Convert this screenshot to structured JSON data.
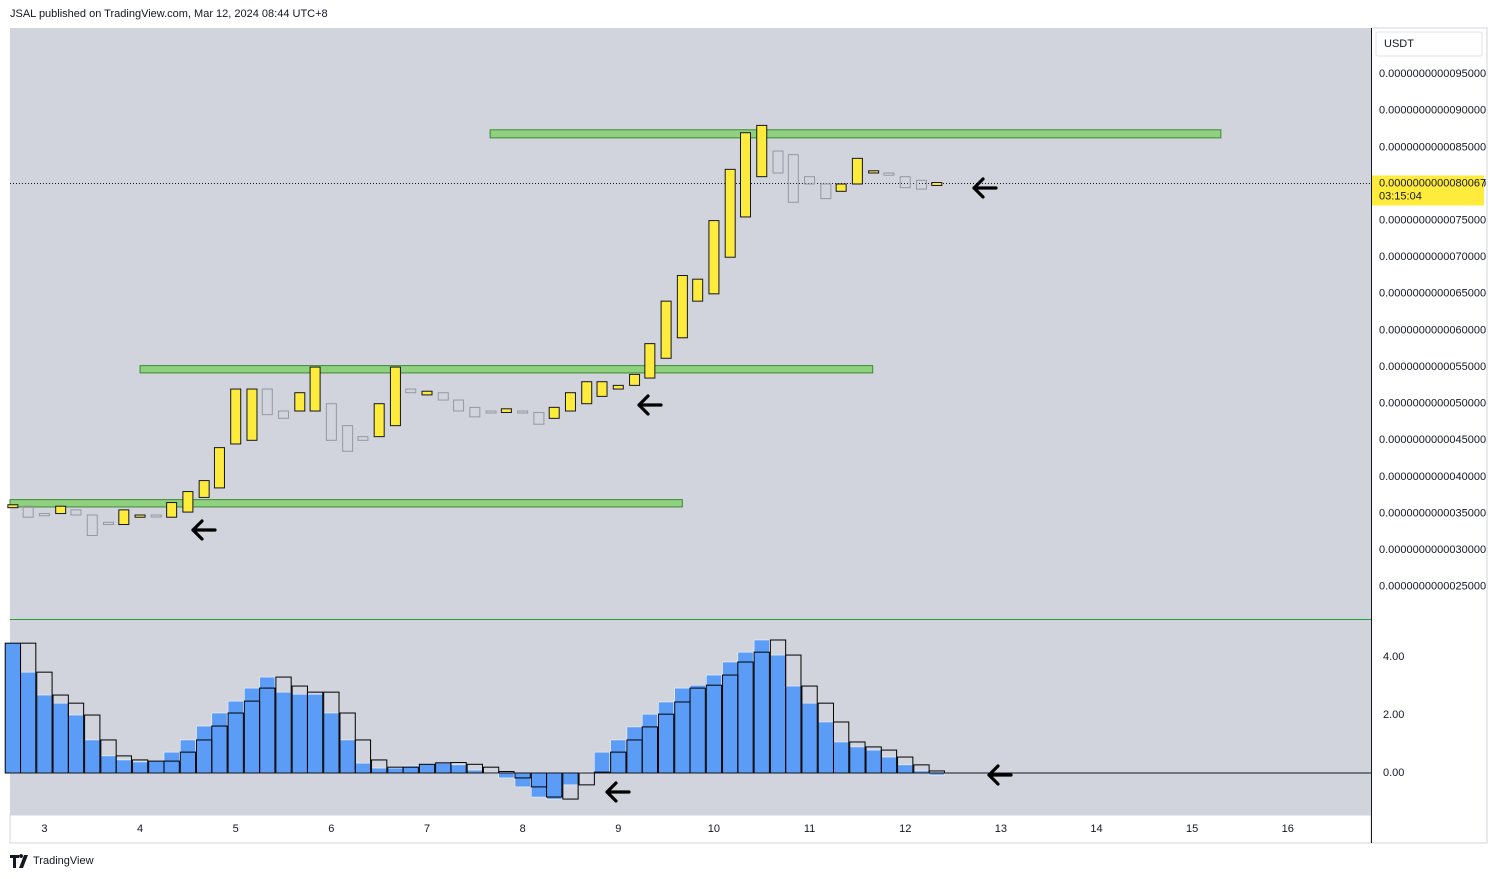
{
  "header": "JSAL published on TradingView.com, Mar 12, 2024 08:44 UTC+8",
  "footer": "TradingView",
  "chart_data": [
    {
      "type": "candlestick",
      "currency": "USDT",
      "x": [
        2.67,
        2.83,
        3,
        3.17,
        3.33,
        3.5,
        3.67,
        3.83,
        4,
        4.17,
        4.33,
        4.5,
        4.67,
        4.83,
        5,
        5.17,
        5.33,
        5.5,
        5.67,
        5.83,
        6,
        6.17,
        6.33,
        6.5,
        6.67,
        6.83,
        7,
        7.17,
        7.33,
        7.5,
        7.67,
        7.83,
        8,
        8.17,
        8.33,
        8.5,
        8.67,
        8.83,
        9,
        9.17,
        9.33,
        9.5,
        9.67,
        9.83,
        10,
        10.17,
        10.33,
        10.5,
        10.67,
        10.83,
        11,
        11.17,
        11.33,
        11.5,
        11.67,
        11.83,
        12,
        12.17,
        12.33
      ],
      "open": [
        3.58e-12,
        3.6e-12,
        3.5e-12,
        3.5e-12,
        3.55e-12,
        3.48e-12,
        3.38e-12,
        3.35e-12,
        3.45e-12,
        3.48e-12,
        3.45e-12,
        3.52e-12,
        3.72e-12,
        3.85e-12,
        4.45e-12,
        4.5e-12,
        5.2e-12,
        4.9e-12,
        4.9e-12,
        4.9e-12,
        5e-12,
        4.7e-12,
        4.55e-12,
        4.55e-12,
        4.7e-12,
        5.2e-12,
        5.12e-12,
        5.15e-12,
        5.05e-12,
        4.95e-12,
        4.9e-12,
        4.88e-12,
        4.9e-12,
        4.88e-12,
        4.8e-12,
        4.9e-12,
        5e-12,
        5.1e-12,
        5.2e-12,
        5.25e-12,
        5.35e-12,
        5.62e-12,
        5.9e-12,
        6.4e-12,
        6.5e-12,
        7e-12,
        7.55e-12,
        8.1e-12,
        8.45e-12,
        8.4e-12,
        8.1e-12,
        8e-12,
        7.9e-12,
        8e-12,
        8.15e-12,
        8.15e-12,
        8.1e-12,
        8.05e-12,
        7.98e-12
      ],
      "close": [
        3.62e-12,
        3.45e-12,
        3.47e-12,
        3.6e-12,
        3.48e-12,
        3.2e-12,
        3.35e-12,
        3.55e-12,
        3.48e-12,
        3.46e-12,
        3.65e-12,
        3.8e-12,
        3.95e-12,
        4.4e-12,
        5.2e-12,
        5.2e-12,
        4.85e-12,
        4.8e-12,
        5.15e-12,
        5.5e-12,
        4.5e-12,
        4.35e-12,
        4.5e-12,
        5e-12,
        5.5e-12,
        5.15e-12,
        5.17e-12,
        5.05e-12,
        4.9e-12,
        4.82e-12,
        4.88e-12,
        4.93e-12,
        4.88e-12,
        4.72e-12,
        4.95e-12,
        5.15e-12,
        5.3e-12,
        5.3e-12,
        5.25e-12,
        5.4e-12,
        5.82e-12,
        6.4e-12,
        6.75e-12,
        6.7e-12,
        7.5e-12,
        8.2e-12,
        8.7e-12,
        8.8e-12,
        8.15e-12,
        7.75e-12,
        8e-12,
        7.8e-12,
        8e-12,
        8.35e-12,
        8.18e-12,
        8.12e-12,
        7.95e-12,
        7.93e-12,
        8.02e-12
      ],
      "up_color": "#ffeb3b",
      "down_color": "#9598a1",
      "xlim": [
        2.64,
        16.87
      ],
      "ylim": [
        2.06e-12,
        1.013e-11
      ],
      "yticks": [
        {
          "value": 2.5e-12,
          "label": "0.0000000000025000"
        },
        {
          "value": 3e-12,
          "label": "0.0000000000030000"
        },
        {
          "value": 3.5e-12,
          "label": "0.0000000000035000"
        },
        {
          "value": 4e-12,
          "label": "0.0000000000040000"
        },
        {
          "value": 4.5e-12,
          "label": "0.0000000000045000"
        },
        {
          "value": 5e-12,
          "label": "0.0000000000050000"
        },
        {
          "value": 5.5e-12,
          "label": "0.0000000000055000"
        },
        {
          "value": 6e-12,
          "label": "0.0000000000060000"
        },
        {
          "value": 6.5e-12,
          "label": "0.0000000000065000"
        },
        {
          "value": 7e-12,
          "label": "0.0000000000070000"
        },
        {
          "value": 7.5e-12,
          "label": "0.0000000000075000"
        },
        {
          "value": 8e-12,
          "label": "0.0000000000080000"
        },
        {
          "value": 8.5e-12,
          "label": "0.0000000000085000"
        },
        {
          "value": 9e-12,
          "label": "0.0000000000090000"
        },
        {
          "value": 9.5e-12,
          "label": "0.0000000000095000"
        }
      ],
      "zones": [
        {
          "x": [
            2.64,
            9.67
          ],
          "y": [
            3.59e-12,
            3.69e-12
          ]
        },
        {
          "x": [
            4.0,
            11.66
          ],
          "y": [
            5.42e-12,
            5.52e-12
          ]
        },
        {
          "x": [
            7.66,
            15.3
          ],
          "y": [
            8.63e-12,
            8.74e-12
          ]
        }
      ],
      "zone_color": "#8fd17e",
      "last_price": {
        "value": 8.0067e-12,
        "label": "0.0000000000080067"
      },
      "countdown": "03:15:04"
    },
    {
      "type": "histogram",
      "x": [
        2.67,
        2.83,
        3,
        3.17,
        3.33,
        3.5,
        3.67,
        3.83,
        4,
        4.17,
        4.33,
        4.5,
        4.67,
        4.83,
        5,
        5.17,
        5.33,
        5.5,
        5.67,
        5.83,
        6,
        6.17,
        6.33,
        6.5,
        6.67,
        6.83,
        7,
        7.17,
        7.33,
        7.5,
        7.67,
        7.83,
        8,
        8.17,
        8.33,
        8.5,
        8.67,
        8.83,
        9,
        9.17,
        9.33,
        9.5,
        9.67,
        9.83,
        10,
        10.17,
        10.33,
        10.5,
        10.67,
        10.83,
        11,
        11.17,
        11.33,
        11.5,
        11.67,
        11.83,
        12,
        12.17,
        12.33
      ],
      "series": [
        {
          "color": "#5b9cf6",
          "values": [
            4.48,
            3.48,
            2.69,
            2.41,
            2.0,
            1.14,
            0.59,
            0.45,
            0.38,
            0.41,
            0.72,
            1.14,
            1.62,
            2.07,
            2.48,
            2.93,
            3.31,
            2.79,
            2.72,
            2.72,
            2.07,
            1.14,
            0.34,
            0.17,
            0.17,
            0.24,
            0.31,
            0.34,
            0.28,
            0.1,
            0,
            -0.17,
            -0.48,
            -0.83,
            -0.9,
            -0.41,
            0.03,
            0.72,
            1.14,
            1.59,
            2.03,
            2.45,
            2.93,
            3.03,
            3.38,
            3.83,
            4.17,
            4.59,
            4.07,
            3.0,
            2.41,
            1.76,
            1.07,
            0.9,
            0.79,
            0.55,
            0.28,
            0.07,
            -0.07
          ]
        },
        {
          "color": "#000000",
          "values": [
            4.48,
            4.48,
            3.48,
            2.69,
            2.41,
            2.0,
            1.14,
            0.59,
            0.45,
            0.41,
            0.41,
            0.72,
            1.14,
            1.62,
            2.07,
            2.48,
            2.93,
            3.31,
            3.0,
            2.79,
            2.79,
            2.07,
            1.14,
            0.45,
            0.2,
            0.2,
            0.3,
            0.35,
            0.36,
            0.3,
            0.2,
            0.05,
            -0.17,
            -0.48,
            -0.83,
            -0.9,
            -0.41,
            0.03,
            0.72,
            1.14,
            1.59,
            2.03,
            2.45,
            2.93,
            3.03,
            3.38,
            3.83,
            4.17,
            4.59,
            4.07,
            3.0,
            2.41,
            1.76,
            1.07,
            0.9,
            0.79,
            0.55,
            0.28,
            0.07
          ]
        }
      ],
      "xlim": [
        2.64,
        16.87
      ],
      "ylim": [
        -1.45,
        5.28
      ],
      "yticks": [
        {
          "value": 0,
          "label": "0.00"
        },
        {
          "value": 2,
          "label": "2.00"
        },
        {
          "value": 4,
          "label": "4.00"
        }
      ],
      "xticks": [
        3,
        4,
        5,
        6,
        7,
        8,
        9,
        10,
        11,
        12,
        13,
        14,
        15,
        16
      ]
    }
  ]
}
